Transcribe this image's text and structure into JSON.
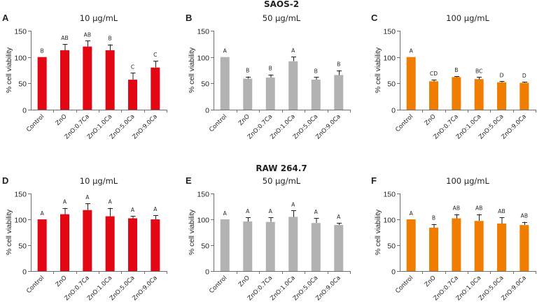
{
  "figure": {
    "row_titles": [
      "SAOS-2",
      "RAW 264.7"
    ]
  },
  "chart_data": [
    {
      "type": "bar",
      "panel": "A",
      "row": "SAOS-2",
      "title": "10 µg/mL",
      "xlabel": "",
      "ylabel": "% cell viability",
      "ylim": [
        0,
        150
      ],
      "yticks": [
        0,
        50,
        100,
        150
      ],
      "color": "#e30613",
      "categories": [
        "Control",
        "ZnO",
        "ZnO:0.7Ca",
        "ZnO:1.0Ca",
        "ZnO:5.0Ca",
        "ZnO:9.0Ca"
      ],
      "values": [
        100,
        113,
        120,
        113,
        57,
        80
      ],
      "errors": [
        0,
        12,
        11,
        11,
        13,
        13
      ],
      "significance": [
        "B",
        "AB",
        "AB",
        "B",
        "C",
        "C"
      ]
    },
    {
      "type": "bar",
      "panel": "B",
      "row": "SAOS-2",
      "title": "50 µg/mL",
      "xlabel": "",
      "ylabel": "% cell viability",
      "ylim": [
        0,
        150
      ],
      "yticks": [
        0,
        50,
        100,
        150
      ],
      "color": "#b2b2b2",
      "categories": [
        "Control",
        "ZnO",
        "ZnO:0.7Ca",
        "ZnO:1.0Ca",
        "ZnO:5.0Ca",
        "ZnO:9.0Ca"
      ],
      "values": [
        100,
        59,
        61,
        92,
        57,
        66
      ],
      "errors": [
        0,
        4,
        6,
        9,
        5,
        9
      ],
      "significance": [
        "A",
        "B",
        "B",
        "A",
        "B",
        "B"
      ]
    },
    {
      "type": "bar",
      "panel": "C",
      "row": "SAOS-2",
      "title": "100 µg/mL",
      "xlabel": "",
      "ylabel": "% cell viability",
      "ylim": [
        0,
        150
      ],
      "yticks": [
        0,
        50,
        100,
        150
      ],
      "color": "#f07d00",
      "categories": [
        "Control",
        "ZnO",
        "ZnO:0.7Ca",
        "ZnO:1.0Ca",
        "ZnO:5.0Ca",
        "ZnO:9.0Ca"
      ],
      "values": [
        100,
        54,
        62,
        58,
        52,
        51
      ],
      "errors": [
        0,
        3,
        2,
        4,
        2,
        2
      ],
      "significance": [
        "A",
        "CD",
        "B",
        "BC",
        "D",
        "D"
      ]
    },
    {
      "type": "bar",
      "panel": "D",
      "row": "RAW 264.7",
      "title": "10 µg/mL",
      "xlabel": "",
      "ylabel": "% cell viability",
      "ylim": [
        0,
        150
      ],
      "yticks": [
        0,
        50,
        100,
        150
      ],
      "color": "#e30613",
      "categories": [
        "Control",
        "ZnO",
        "ZnO:0.7Ca",
        "ZnO:1.0Ca",
        "ZnO:5.0Ca",
        "ZnO:9.0Ca"
      ],
      "values": [
        100,
        110,
        118,
        106,
        102,
        100
      ],
      "errors": [
        0,
        12,
        13,
        16,
        5,
        8
      ],
      "significance": [
        "A",
        "A",
        "A",
        "A",
        "A",
        "A"
      ]
    },
    {
      "type": "bar",
      "panel": "E",
      "row": "RAW 264.7",
      "title": "50 µg/mL",
      "xlabel": "",
      "ylabel": "% cell viability",
      "ylim": [
        0,
        150
      ],
      "yticks": [
        0,
        50,
        100,
        150
      ],
      "color": "#b2b2b2",
      "categories": [
        "Control",
        "ZnO",
        "ZnO:0.7Ca",
        "ZnO:1.0Ca",
        "ZnO:5.0Ca",
        "ZnO:9.0Ca"
      ],
      "values": [
        100,
        96,
        95,
        105,
        93,
        89
      ],
      "errors": [
        0,
        8,
        9,
        12,
        10,
        4
      ],
      "significance": [
        "A",
        "A",
        "A",
        "A",
        "A",
        "A"
      ]
    },
    {
      "type": "bar",
      "panel": "F",
      "row": "RAW 264.7",
      "title": "100 µg/mL",
      "xlabel": "",
      "ylabel": "% cell viability",
      "ylim": [
        0,
        150
      ],
      "yticks": [
        0,
        50,
        100,
        150
      ],
      "color": "#f07d00",
      "categories": [
        "Control",
        "ZnO",
        "ZnO:0.7Ca",
        "ZnO:1.0Ca",
        "ZnO:5.0Ca",
        "ZnO:9.0Ca"
      ],
      "values": [
        100,
        84,
        102,
        97,
        92,
        89
      ],
      "errors": [
        0,
        7,
        8,
        13,
        12,
        6
      ],
      "significance": [
        "A",
        "B",
        "AB",
        "AB",
        "AB",
        "AB"
      ]
    }
  ]
}
